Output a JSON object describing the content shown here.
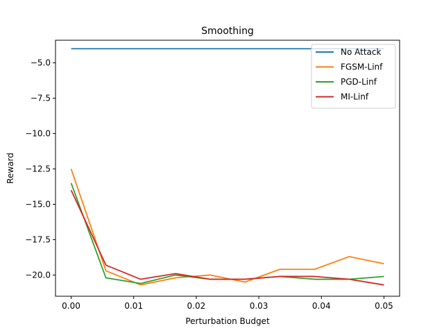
{
  "chart_data": {
    "type": "line",
    "title": "Smoothing",
    "xlabel": "Perturbation Budget",
    "ylabel": "Reward",
    "xlim": [
      -0.0025,
      0.0525
    ],
    "ylim": [
      -21.5,
      -3.4
    ],
    "xticks": [
      0.0,
      0.01,
      0.02,
      0.03,
      0.04,
      0.05
    ],
    "xtick_labels": [
      "0.00",
      "0.01",
      "0.02",
      "0.03",
      "0.04",
      "0.05"
    ],
    "yticks": [
      -20.0,
      -17.5,
      -15.0,
      -12.5,
      -10.0,
      -7.5,
      -5.0
    ],
    "ytick_labels": [
      "−20.0",
      "−17.5",
      "−15.0",
      "−12.5",
      "−10.0",
      "−7.5",
      "−5.0"
    ],
    "grid": false,
    "legend_position": "top-right",
    "x": [
      0.0,
      0.00556,
      0.01111,
      0.01667,
      0.02222,
      0.02778,
      0.03333,
      0.03889,
      0.04444,
      0.05
    ],
    "series": [
      {
        "name": "No Attack",
        "color": "#1f77b4",
        "values": [
          -4.0,
          -4.0,
          -4.0,
          -4.0,
          -4.0,
          -4.0,
          -4.0,
          -4.0,
          -4.0,
          -4.0
        ]
      },
      {
        "name": "FGSM-Linf",
        "color": "#ff7f0e",
        "values": [
          -12.5,
          -19.7,
          -20.7,
          -20.2,
          -20.0,
          -20.5,
          -19.6,
          -19.6,
          -18.7,
          -19.2
        ]
      },
      {
        "name": "PGD-Linf",
        "color": "#2ca02c",
        "values": [
          -13.5,
          -20.2,
          -20.6,
          -20.0,
          -20.3,
          -20.3,
          -20.1,
          -20.3,
          -20.3,
          -20.1
        ]
      },
      {
        "name": "MI-Linf",
        "color": "#d62728",
        "values": [
          -14.0,
          -19.3,
          -20.3,
          -19.9,
          -20.3,
          -20.3,
          -20.1,
          -20.1,
          -20.3,
          -20.7
        ]
      }
    ]
  }
}
